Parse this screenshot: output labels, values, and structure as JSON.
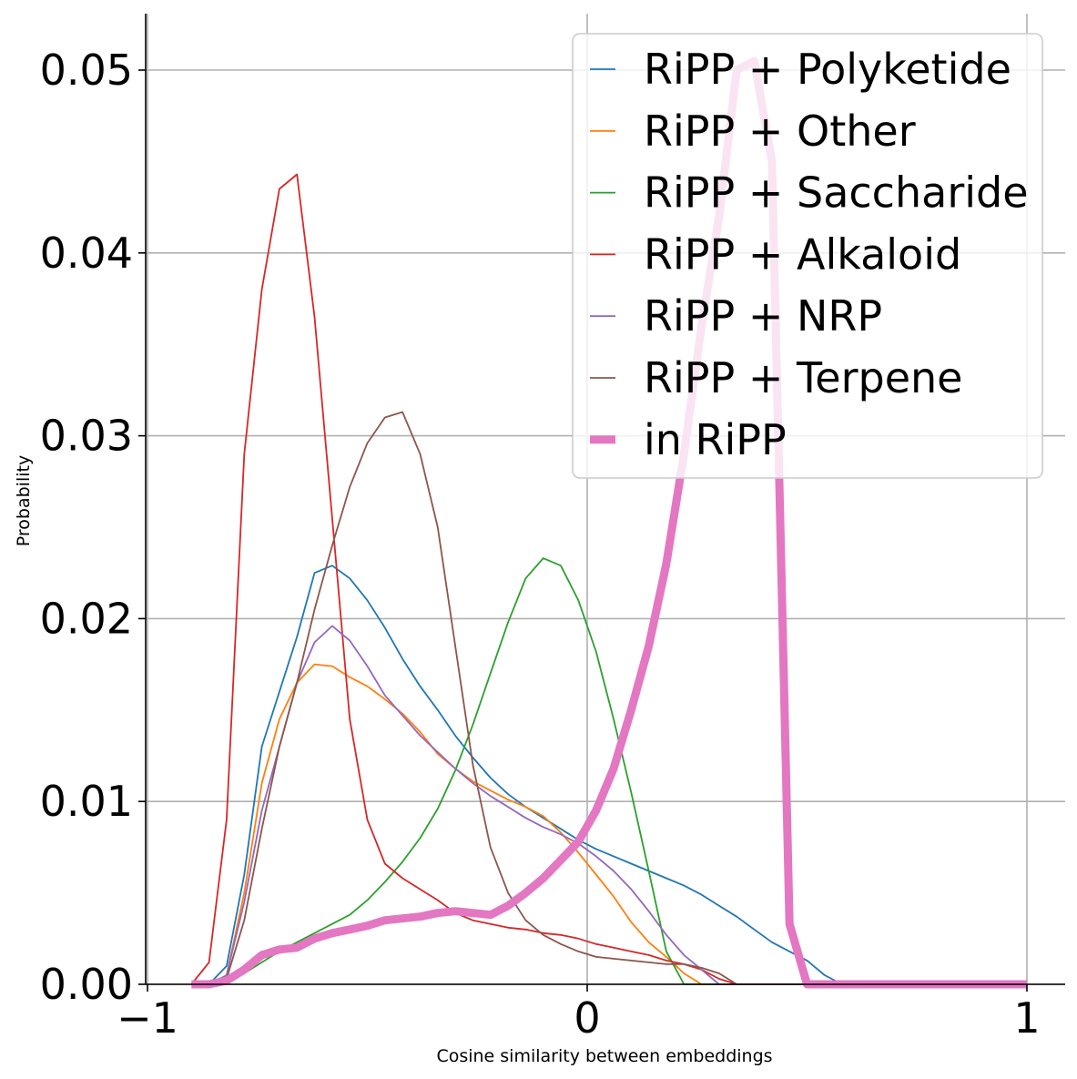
{
  "chart_data": {
    "type": "line",
    "title": "",
    "xlabel": "Cosine similarity between embeddings",
    "ylabel": "Probability",
    "xlim": [
      -1,
      1
    ],
    "ylim": [
      0,
      0.053
    ],
    "x_ticks": [
      -1,
      0,
      1
    ],
    "x_tick_labels": [
      "−1",
      "0",
      "1"
    ],
    "y_ticks": [
      0,
      0.01,
      0.02,
      0.03,
      0.04,
      0.05
    ],
    "y_tick_labels": [
      "0.00",
      "0.01",
      "0.02",
      "0.03",
      "0.04",
      "0.05"
    ],
    "grid": true,
    "legend_position": "top-right",
    "x": [
      -0.9,
      -0.86,
      -0.82,
      -0.78,
      -0.74,
      -0.7,
      -0.66,
      -0.62,
      -0.58,
      -0.54,
      -0.5,
      -0.46,
      -0.42,
      -0.38,
      -0.34,
      -0.3,
      -0.26,
      -0.22,
      -0.18,
      -0.14,
      -0.1,
      -0.06,
      -0.02,
      0.02,
      0.06,
      0.1,
      0.14,
      0.18,
      0.22,
      0.26,
      0.3,
      0.34,
      0.38,
      0.42,
      0.46,
      0.5,
      0.54,
      0.58,
      0.62,
      0.66,
      0.7,
      0.74,
      0.78,
      0.82,
      0.86,
      0.9,
      0.94,
      0.98,
      1.0
    ],
    "series": [
      {
        "name": "RiPP + Polyketide",
        "color": "#1f77b4",
        "linewidth": 1.8,
        "values": [
          0,
          0,
          0.001,
          0.006,
          0.013,
          0.016,
          0.019,
          0.0225,
          0.0229,
          0.0222,
          0.021,
          0.0195,
          0.0178,
          0.0163,
          0.015,
          0.0136,
          0.0124,
          0.0113,
          0.0104,
          0.0097,
          0.0091,
          0.0085,
          0.0079,
          0.0074,
          0.007,
          0.0066,
          0.0062,
          0.0058,
          0.0054,
          0.0049,
          0.0043,
          0.0037,
          0.003,
          0.0023,
          0.0018,
          0.0013,
          0.0005,
          0.0,
          0,
          0,
          0,
          0,
          0,
          0,
          0,
          0,
          0,
          0,
          0
        ]
      },
      {
        "name": "RiPP + Other",
        "color": "#ff7f0e",
        "linewidth": 1.8,
        "values": [
          0,
          0,
          0.0005,
          0.005,
          0.011,
          0.0145,
          0.0165,
          0.0175,
          0.0174,
          0.0168,
          0.0163,
          0.0156,
          0.0148,
          0.0138,
          0.0126,
          0.0118,
          0.0111,
          0.0106,
          0.0101,
          0.0097,
          0.0092,
          0.0083,
          0.0072,
          0.006,
          0.0048,
          0.0034,
          0.0023,
          0.0015,
          0.0006,
          0.0,
          0,
          0,
          0,
          0,
          0,
          0,
          0,
          0,
          0,
          0,
          0,
          0,
          0,
          0,
          0,
          0,
          0,
          0,
          0
        ]
      },
      {
        "name": "RiPP + Saccharide",
        "color": "#2ca02c",
        "linewidth": 1.8,
        "values": [
          0,
          0,
          0.0002,
          0.0006,
          0.0012,
          0.0018,
          0.0023,
          0.0028,
          0.0033,
          0.0038,
          0.0046,
          0.0056,
          0.0067,
          0.008,
          0.0096,
          0.0117,
          0.0142,
          0.017,
          0.0198,
          0.0222,
          0.0233,
          0.0229,
          0.021,
          0.0182,
          0.0145,
          0.0105,
          0.0062,
          0.0018,
          0.0,
          0,
          0,
          0,
          0,
          0,
          0,
          0,
          0,
          0,
          0,
          0,
          0,
          0,
          0,
          0,
          0,
          0,
          0,
          0,
          0
        ]
      },
      {
        "name": "RiPP + Alkaloid",
        "color": "#d62728",
        "linewidth": 1.8,
        "values": [
          0,
          0.0012,
          0.009,
          0.029,
          0.038,
          0.0435,
          0.0443,
          0.0365,
          0.0255,
          0.0145,
          0.009,
          0.0066,
          0.0058,
          0.0052,
          0.0046,
          0.0039,
          0.0035,
          0.0033,
          0.0031,
          0.003,
          0.0028,
          0.0027,
          0.0025,
          0.0022,
          0.002,
          0.0018,
          0.0016,
          0.0013,
          0.0011,
          0.0008,
          0.0003,
          0.0,
          0,
          0,
          0,
          0,
          0,
          0,
          0,
          0,
          0,
          0,
          0,
          0,
          0,
          0,
          0,
          0,
          0
        ]
      },
      {
        "name": "RiPP + NRP",
        "color": "#9467bd",
        "linewidth": 1.8,
        "values": [
          0,
          0,
          0.0005,
          0.0045,
          0.0095,
          0.013,
          0.0165,
          0.0187,
          0.0196,
          0.0188,
          0.0174,
          0.0158,
          0.0147,
          0.0136,
          0.0127,
          0.0118,
          0.011,
          0.0103,
          0.0097,
          0.0091,
          0.0086,
          0.0082,
          0.0077,
          0.007,
          0.0062,
          0.0052,
          0.004,
          0.0027,
          0.0016,
          0.0008,
          0.0,
          0,
          0,
          0,
          0,
          0,
          0,
          0,
          0,
          0,
          0,
          0,
          0,
          0,
          0,
          0,
          0,
          0,
          0
        ]
      },
      {
        "name": "RiPP + Terpene",
        "color": "#8c564b",
        "linewidth": 1.8,
        "values": [
          0,
          0,
          0.0003,
          0.0035,
          0.0085,
          0.013,
          0.0165,
          0.0205,
          0.024,
          0.0272,
          0.0296,
          0.031,
          0.0313,
          0.029,
          0.025,
          0.0185,
          0.012,
          0.0075,
          0.005,
          0.0035,
          0.0027,
          0.0022,
          0.0018,
          0.0015,
          0.0014,
          0.0013,
          0.0012,
          0.0011,
          0.0011,
          0.0009,
          0.0006,
          0.0,
          0,
          0,
          0,
          0,
          0,
          0,
          0,
          0,
          0,
          0,
          0,
          0,
          0,
          0,
          0,
          0,
          0
        ]
      },
      {
        "name": "in RiPP",
        "color": "#e377c2",
        "linewidth": 9,
        "values": [
          0,
          0,
          0.0002,
          0.0008,
          0.0016,
          0.0019,
          0.002,
          0.0025,
          0.0028,
          0.003,
          0.0032,
          0.0035,
          0.0036,
          0.0037,
          0.0039,
          0.004,
          0.0039,
          0.0038,
          0.0043,
          0.005,
          0.0058,
          0.0068,
          0.0078,
          0.0095,
          0.0118,
          0.015,
          0.0185,
          0.023,
          0.029,
          0.036,
          0.042,
          0.05,
          0.0505,
          0.045,
          0.0033,
          0,
          0,
          0,
          0,
          0,
          0,
          0,
          0,
          0,
          0,
          0,
          0,
          0,
          0
        ]
      }
    ]
  }
}
